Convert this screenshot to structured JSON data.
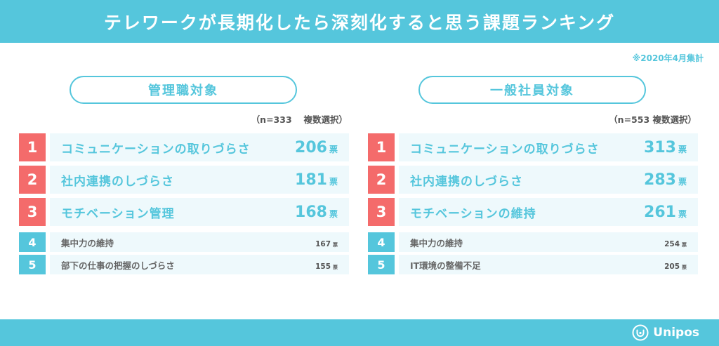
{
  "title": "テレワークが長期化したら深刻化すると思う課題ランキング",
  "note": "※2020年4月集計",
  "brand": {
    "name": "Unipos",
    "icon": "unipos-logo-icon"
  },
  "colors": {
    "accent": "#55c6dc",
    "top_rank": "#f46b6b",
    "bar_bg": "#eef9fc"
  },
  "chart_data": [
    {
      "type": "table",
      "title": "管理職対象",
      "sample_note": "（n=333　 複数選択）",
      "unit": "票",
      "ranks": [
        "1",
        "2",
        "3",
        "4",
        "5"
      ],
      "categories": [
        "コミュニケーションの取りづらさ",
        "社内連携のしづらさ",
        "モチベーション管理",
        "集中力の維持",
        "部下の仕事の把握のしづらさ"
      ],
      "values": [
        206,
        181,
        168,
        167,
        155
      ]
    },
    {
      "type": "table",
      "title": "一般社員対象",
      "sample_note": "（n=553 複数選択）",
      "unit": "票",
      "ranks": [
        "1",
        "2",
        "3",
        "4",
        "5"
      ],
      "categories": [
        "コミュニケーションの取りづらさ",
        "社内連携のしづらさ",
        "モチベーションの維持",
        "集中力の維持",
        "IT環境の整備不足"
      ],
      "values": [
        313,
        283,
        261,
        254,
        205
      ]
    }
  ]
}
